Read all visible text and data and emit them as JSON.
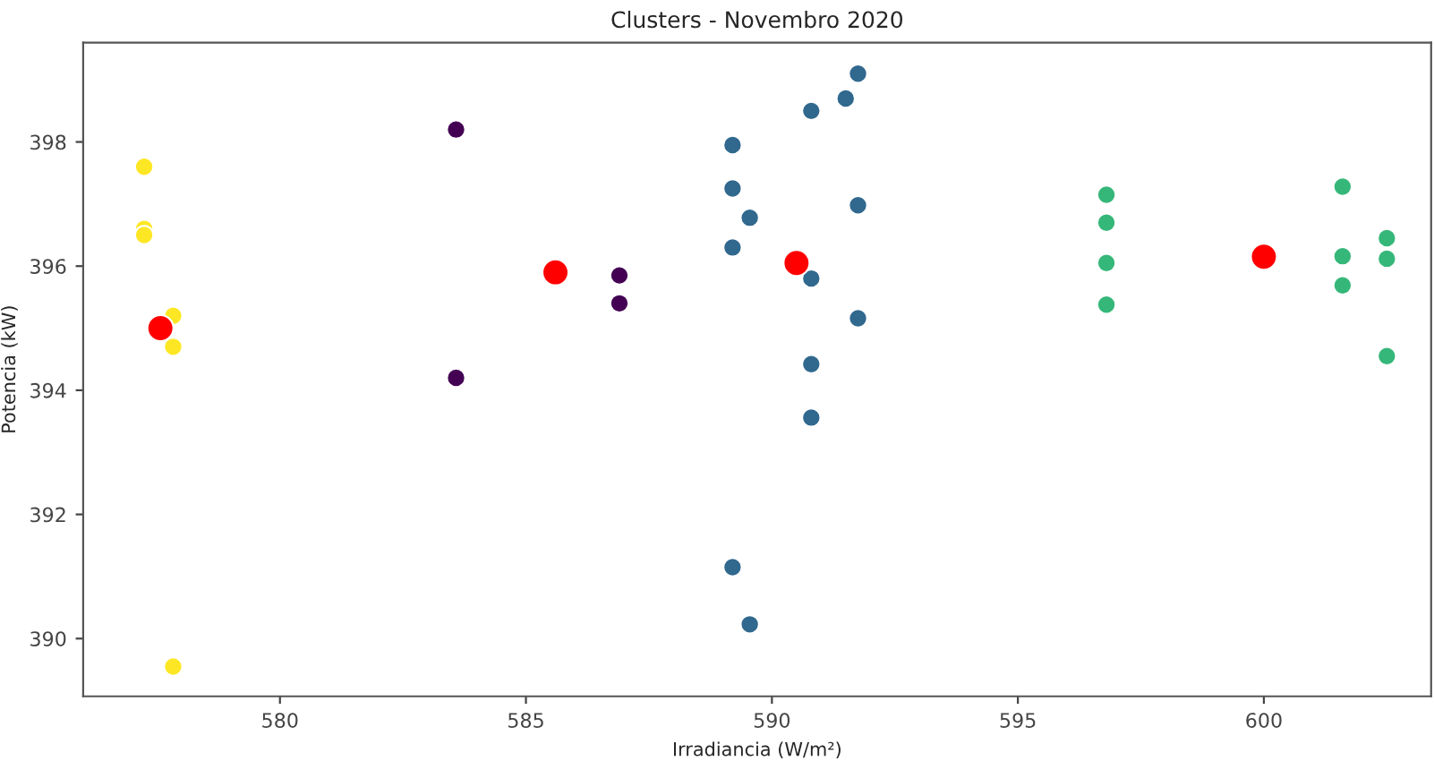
{
  "chart_data": {
    "type": "scatter",
    "title": "Clusters - Novembro 2020",
    "xlabel": "Irradiancia (W/m²)",
    "ylabel": "Potencia (kW)",
    "series": [
      {
        "color": "#fde725",
        "x": [
          577.24,
          577.24,
          577.24,
          577.83,
          577.83,
          577.83
        ],
        "values": [
          397.6,
          396.6,
          396.5,
          395.2,
          394.7,
          389.55
        ]
      },
      {
        "color": "#440154",
        "x": [
          583.58,
          583.58,
          586.9,
          586.9
        ],
        "values": [
          398.2,
          394.2,
          395.85,
          395.4
        ]
      },
      {
        "color": "#31688e",
        "x": [
          591.75,
          591.5,
          590.8,
          589.2,
          589.2,
          589.55,
          591.75,
          589.2,
          590.8,
          591.75,
          590.8,
          590.8,
          589.2,
          589.55
        ],
        "values": [
          399.1,
          398.7,
          398.5,
          397.95,
          397.25,
          396.78,
          396.98,
          396.3,
          395.8,
          395.16,
          394.42,
          393.56,
          391.15,
          390.23
        ]
      },
      {
        "color": "#35b779",
        "x": [
          596.8,
          596.8,
          596.8,
          596.8,
          601.6,
          601.6,
          601.6,
          602.5,
          602.5,
          602.5
        ],
        "values": [
          397.15,
          396.7,
          396.05,
          395.38,
          397.28,
          396.16,
          395.69,
          396.45,
          396.12,
          394.55
        ]
      },
      {
        "color": "#ff0000",
        "x": [
          577.57,
          585.6,
          590.5,
          600.0
        ],
        "values": [
          395.0,
          395.9,
          396.05,
          396.15
        ]
      }
    ],
    "xlim": [
      576.0,
      603.4
    ],
    "ylim": [
      389.07,
      399.6
    ],
    "xticks": [
      580,
      585,
      590,
      595,
      600
    ],
    "yticks": [
      390,
      392,
      394,
      396,
      398
    ],
    "grid": false,
    "marker": "circle"
  }
}
